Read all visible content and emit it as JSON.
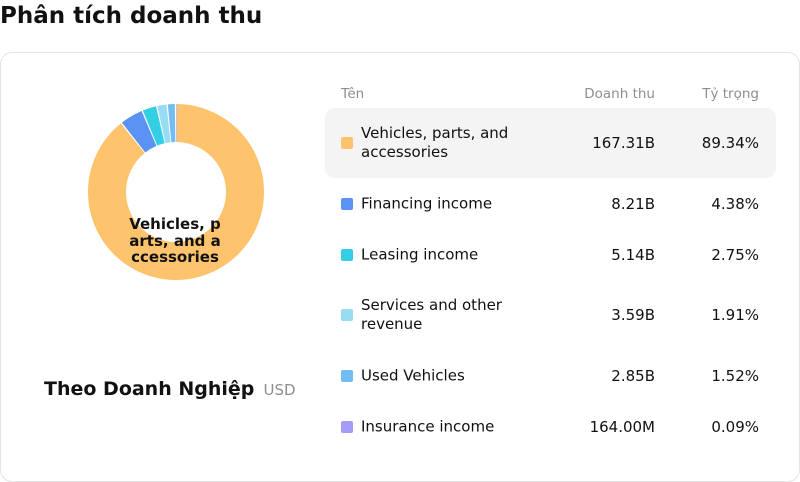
{
  "page": {
    "title": "Phân tích doanh thu"
  },
  "summary": {
    "center_label_lines": [
      "Vehicles, p",
      "arts, and a",
      "ccessories"
    ],
    "subtitle": "Theo Doanh Nghiệp",
    "unit": "USD"
  },
  "table": {
    "headers": {
      "name": "Tên",
      "revenue": "Doanh thu",
      "share": "Tỷ trọng"
    }
  },
  "chart_data": {
    "type": "pie",
    "variant": "donut",
    "categories": [
      "Vehicles, parts, and accessories",
      "Financing income",
      "Leasing income",
      "Services and other revenue",
      "Used Vehicles",
      "Insurance income"
    ],
    "values": [
      167.31,
      8.21,
      5.14,
      3.59,
      2.85,
      0.164
    ],
    "value_labels": [
      "167.31B",
      "8.21B",
      "5.14B",
      "3.59B",
      "2.85B",
      "164.00M"
    ],
    "shares": [
      89.34,
      4.38,
      2.75,
      1.91,
      1.52,
      0.09
    ],
    "share_labels": [
      "89.34%",
      "4.38%",
      "2.75%",
      "1.91%",
      "1.52%",
      "0.09%"
    ],
    "colors": [
      "#fdc46d",
      "#5b93f4",
      "#34cfe4",
      "#97dcf2",
      "#72bdf4",
      "#a59cf7"
    ],
    "unit": "USD",
    "highlighted_index": 0
  }
}
